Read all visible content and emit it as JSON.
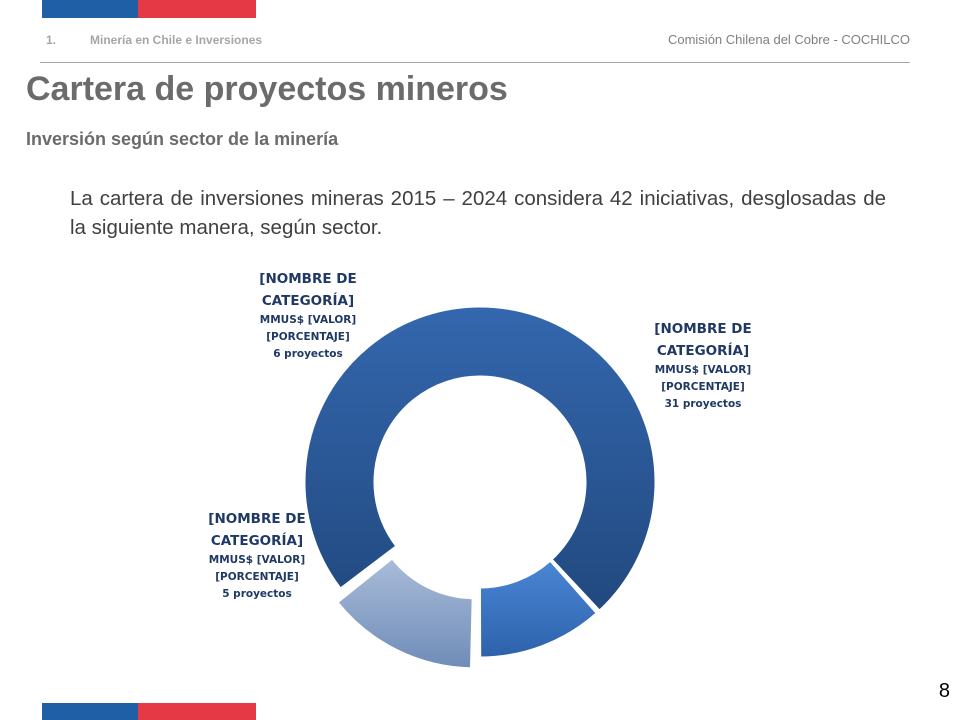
{
  "header": {
    "section_number": "1.",
    "section_name": "Minería en Chile e Inversiones",
    "organization": "Comisión Chilena del Cobre - COCHILCO"
  },
  "title": "Cartera de proyectos mineros",
  "subtitle": "Inversión según sector de la minería",
  "intro_text": "La cartera de inversiones mineras 2015 – 2024 considera 42 iniciativas, desglosadas de la siguiente manera, según sector.",
  "page_number": "8",
  "colors": {
    "flag_blue": "#1f5fa6",
    "flag_red": "#e63946",
    "slice_large": "#2c5aa0",
    "slice_medium": "#3a78c8",
    "slice_small": "#8aa3c8"
  },
  "chart_data": {
    "type": "pie",
    "variant": "donut",
    "total_projects": 42,
    "title": "",
    "slices": [
      {
        "category": "[NOMBRE DE CATEGORÍA]",
        "value_label": "MMUS$ [VALOR]",
        "percent_label": "[PORCENTAJE]",
        "projects": 31,
        "projects_label": "31 proyectos",
        "color": "#2c5aa0",
        "exploded": false
      },
      {
        "category": "[NOMBRE DE CATEGORÍA]",
        "value_label": "MMUS$ [VALOR]",
        "percent_label": "[PORCENTAJE]",
        "projects": 5,
        "projects_label": "5 proyectos",
        "color": "#3a78c8",
        "exploded": false
      },
      {
        "category": "[NOMBRE DE CATEGORÍA]",
        "value_label": "MMUS$ [VALOR]",
        "percent_label": "[PORCENTAJE]",
        "projects": 6,
        "projects_label": "6 proyectos",
        "color": "#8aa3c8",
        "exploded": true
      }
    ]
  }
}
